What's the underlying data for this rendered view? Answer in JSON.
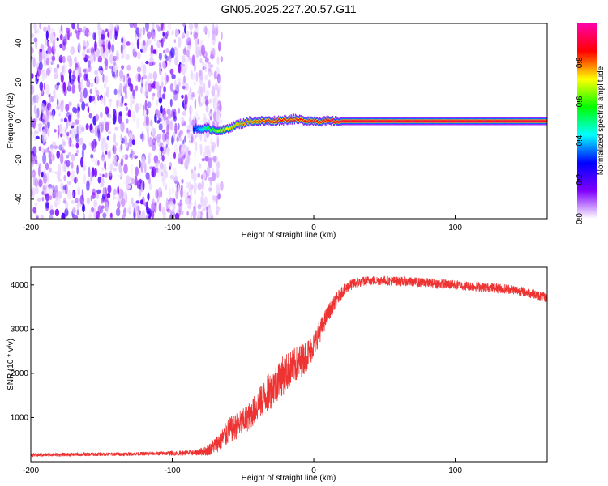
{
  "title": "GN05.2025.227.20.57.G11",
  "chart_data": [
    {
      "type": "heatmap",
      "xlabel": "Height of straight line (km)",
      "ylabel": "Frequency (Hz)",
      "xlim": [
        -200,
        165
      ],
      "ylim": [
        -50,
        50
      ],
      "x_ticks": [
        -200,
        -100,
        0,
        100
      ],
      "y_ticks": [
        -40,
        -20,
        0,
        20,
        40
      ],
      "colorbar": {
        "label": "Normalized spectral amplitude",
        "range": [
          0,
          1
        ],
        "ticks": [
          "0.0",
          "0.2",
          "0.4",
          "0.6",
          "0.8"
        ],
        "colormap": [
          "#ffffff",
          "#8000ff",
          "#0000ff",
          "#00ffff",
          "#00ff00",
          "#ffff00",
          "#ff0000",
          "#ff00aa"
        ]
      },
      "noise_region_km": [
        -200,
        -75
      ],
      "signal_track": [
        {
          "x": -85,
          "freq": -4,
          "amp": 0.3
        },
        {
          "x": -75,
          "freq": -4,
          "amp": 0.55
        },
        {
          "x": -65,
          "freq": -5,
          "amp": 0.7
        },
        {
          "x": -55,
          "freq": -2,
          "amp": 0.75
        },
        {
          "x": -45,
          "freq": 0,
          "amp": 0.8
        },
        {
          "x": -30,
          "freq": 0,
          "amp": 0.85
        },
        {
          "x": -15,
          "freq": 1,
          "amp": 0.85
        },
        {
          "x": 0,
          "freq": 0,
          "amp": 0.85
        },
        {
          "x": 15,
          "freq": 0,
          "amp": 0.9
        },
        {
          "x": 165,
          "freq": 0,
          "amp": 0.9
        }
      ]
    },
    {
      "type": "line",
      "xlabel": "Height of straight line (km)",
      "ylabel": "SNR (10 * v/v)",
      "xlim": [
        -200,
        165
      ],
      "ylim": [
        0,
        4400
      ],
      "x_ticks": [
        -200,
        -100,
        0,
        100
      ],
      "y_ticks": [
        1000,
        2000,
        3000,
        4000
      ],
      "series": [
        {
          "color": "#ee3333",
          "x": [
            -200,
            -180,
            -160,
            -140,
            -120,
            -100,
            -85,
            -75,
            -65,
            -60,
            -55,
            -50,
            -45,
            -40,
            -35,
            -30,
            -25,
            -20,
            -15,
            -10,
            -5,
            0,
            5,
            10,
            15,
            20,
            25,
            30,
            40,
            50,
            60,
            80,
            100,
            120,
            140,
            155,
            165
          ],
          "values": [
            150,
            160,
            165,
            170,
            180,
            190,
            200,
            250,
            500,
            700,
            800,
            900,
            1050,
            1250,
            1450,
            1650,
            1850,
            2000,
            2150,
            2250,
            2400,
            2650,
            3000,
            3350,
            3600,
            3850,
            3980,
            4050,
            4100,
            4100,
            4080,
            4050,
            4000,
            3950,
            3900,
            3800,
            3700
          ],
          "noise": [
            40,
            40,
            40,
            40,
            40,
            50,
            60,
            120,
            250,
            300,
            300,
            300,
            320,
            350,
            400,
            450,
            450,
            450,
            400,
            400,
            350,
            300,
            250,
            200,
            180,
            150,
            130,
            120,
            110,
            110,
            110,
            110,
            110,
            110,
            110,
            110,
            110
          ]
        }
      ]
    }
  ]
}
